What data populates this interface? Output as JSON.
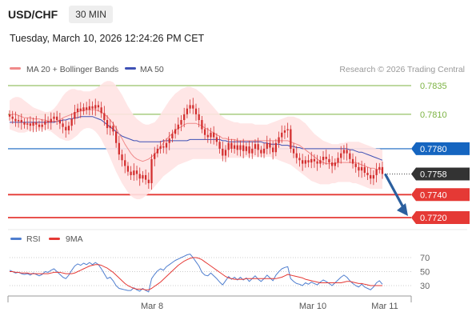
{
  "header": {
    "symbol": "USD/CHF",
    "timeframe": "30 MIN",
    "datetime": "Tuesday, March 10, 2026 12:24:26 PM CET"
  },
  "legend": {
    "ma20_label": "MA 20 + Bollinger Bands",
    "ma50_label": "MA 50",
    "copyright": "Research © 2026 Trading Central",
    "rsi_label": "RSI",
    "rsi_ma_label": "9MA"
  },
  "colors": {
    "candle": "#d32f2f",
    "bollinger_fill": "#ffe3e3",
    "ma20": "#f08a8a",
    "ma50": "#3f51b5",
    "resistance": "#7cb342",
    "pivot": "#1565c0",
    "support": "#e53935",
    "current": "#333333",
    "arrow": "#2b5f9e",
    "rsi": "#4f7ecf",
    "rsi_ma": "#e53935"
  },
  "chart_data": [
    {
      "type": "candlestick",
      "ylim": [
        0.7712,
        0.7848
      ],
      "x_ticks": [
        "Mar 8",
        "Mar 10",
        "Mar 11"
      ],
      "levels": [
        {
          "name": "resistance-2",
          "value": 0.7835,
          "label": "0.7835"
        },
        {
          "name": "resistance-1",
          "value": 0.781,
          "label": "0.7810"
        },
        {
          "name": "pivot",
          "value": 0.778,
          "label": "0.7780"
        },
        {
          "name": "current",
          "value": 0.7758,
          "label": "0.7758"
        },
        {
          "name": "support-1",
          "value": 0.774,
          "label": "0.7740"
        },
        {
          "name": "support-2",
          "value": 0.772,
          "label": "0.7720"
        }
      ],
      "close": [
        0.7808,
        0.7806,
        0.7804,
        0.7805,
        0.7803,
        0.7801,
        0.7802,
        0.78,
        0.7803,
        0.7801,
        0.7799,
        0.7801,
        0.7804,
        0.7803,
        0.7806,
        0.7808,
        0.7805,
        0.7802,
        0.7799,
        0.7796,
        0.78,
        0.7806,
        0.7812,
        0.7815,
        0.7813,
        0.7816,
        0.7814,
        0.7817,
        0.7815,
        0.7818,
        0.7816,
        0.7811,
        0.7805,
        0.7798,
        0.78,
        0.7795,
        0.7785,
        0.7775,
        0.777,
        0.7765,
        0.776,
        0.7757,
        0.7761,
        0.7758,
        0.7754,
        0.7757,
        0.7753,
        0.775,
        0.7771,
        0.7776,
        0.778,
        0.7782,
        0.7781,
        0.7785,
        0.7789,
        0.7793,
        0.7797,
        0.7801,
        0.7805,
        0.781,
        0.7815,
        0.7818,
        0.7815,
        0.781,
        0.7805,
        0.7797,
        0.7792,
        0.779,
        0.7794,
        0.779,
        0.7786,
        0.778,
        0.7774,
        0.7779,
        0.7785,
        0.778,
        0.7783,
        0.7779,
        0.7783,
        0.7778,
        0.7782,
        0.7776,
        0.778,
        0.7784,
        0.7779,
        0.7776,
        0.778,
        0.7785,
        0.7781,
        0.7777,
        0.7785,
        0.779,
        0.7794,
        0.7796,
        0.7797,
        0.778,
        0.7776,
        0.7772,
        0.777,
        0.7767,
        0.777,
        0.7768,
        0.7771,
        0.7769,
        0.7767,
        0.777,
        0.7773,
        0.7771,
        0.7768,
        0.7765,
        0.7768,
        0.7772,
        0.7776,
        0.7779,
        0.7776,
        0.7771,
        0.7767,
        0.7764,
        0.7761,
        0.7764,
        0.7759,
        0.7757,
        0.7754,
        0.7757,
        0.7762,
        0.7764,
        0.7758
      ],
      "bollinger_upper": [
        0.7822,
        0.7824,
        0.7825,
        0.7825,
        0.7824,
        0.7822,
        0.782,
        0.7818,
        0.7816,
        0.7815,
        0.7814,
        0.7813,
        0.7812,
        0.7812,
        0.7813,
        0.7815,
        0.7818,
        0.7822,
        0.7826,
        0.7829,
        0.7831,
        0.7832,
        0.7832,
        0.7831,
        0.7831,
        0.783,
        0.783,
        0.783,
        0.7831,
        0.7832,
        0.7834,
        0.7836,
        0.7838,
        0.7839,
        0.7839,
        0.7838,
        0.7835,
        0.7831,
        0.7827,
        0.7822,
        0.7817,
        0.7813,
        0.7809,
        0.7806,
        0.7804,
        0.7802,
        0.7801,
        0.7801,
        0.7802,
        0.7803,
        0.7806,
        0.781,
        0.7814,
        0.7818,
        0.7822,
        0.7825,
        0.7828,
        0.783,
        0.7832,
        0.7833,
        0.7834,
        0.7834,
        0.7833,
        0.7832,
        0.783,
        0.7828,
        0.7825,
        0.7822,
        0.7819,
        0.7816,
        0.7813,
        0.781,
        0.7808,
        0.7806,
        0.7805,
        0.7804,
        0.7803,
        0.7803,
        0.7802,
        0.7802,
        0.7802,
        0.7802,
        0.7802,
        0.7801,
        0.7801,
        0.7801,
        0.7801,
        0.7801,
        0.7802,
        0.7803,
        0.7804,
        0.7805,
        0.7806,
        0.7807,
        0.7808,
        0.7808,
        0.7808,
        0.7807,
        0.7806,
        0.7804,
        0.7802,
        0.7799,
        0.7796,
        0.7793,
        0.7791,
        0.7789,
        0.7787,
        0.7786,
        0.7785,
        0.7784,
        0.7784,
        0.7784,
        0.7785,
        0.7785,
        0.7786,
        0.7786,
        0.7786,
        0.7786,
        0.7786,
        0.7785,
        0.7784,
        0.7783,
        0.7782,
        0.7781,
        0.778,
        0.778,
        0.7779
      ],
      "bollinger_lower": [
        0.7797,
        0.7796,
        0.7795,
        0.7794,
        0.7794,
        0.7794,
        0.7795,
        0.7796,
        0.7796,
        0.7797,
        0.7797,
        0.7797,
        0.7797,
        0.7796,
        0.7795,
        0.7793,
        0.7791,
        0.7789,
        0.7788,
        0.7787,
        0.7787,
        0.7788,
        0.779,
        0.7792,
        0.7795,
        0.7797,
        0.7798,
        0.7798,
        0.7797,
        0.7795,
        0.7792,
        0.7788,
        0.7783,
        0.7778,
        0.7772,
        0.7766,
        0.776,
        0.7755,
        0.775,
        0.7746,
        0.7742,
        0.7739,
        0.7737,
        0.7736,
        0.7736,
        0.7737,
        0.7739,
        0.7741,
        0.7744,
        0.7747,
        0.775,
        0.7753,
        0.7756,
        0.7758,
        0.776,
        0.7762,
        0.7764,
        0.7766,
        0.7767,
        0.7768,
        0.7769,
        0.777,
        0.7771,
        0.7771,
        0.7771,
        0.7771,
        0.7771,
        0.7771,
        0.7771,
        0.7771,
        0.7771,
        0.7771,
        0.7771,
        0.7771,
        0.7772,
        0.7772,
        0.7772,
        0.7772,
        0.7772,
        0.7772,
        0.7773,
        0.7773,
        0.7773,
        0.7773,
        0.7773,
        0.7773,
        0.7773,
        0.7773,
        0.7773,
        0.7772,
        0.7771,
        0.777,
        0.7769,
        0.7768,
        0.7767,
        0.7766,
        0.7764,
        0.7762,
        0.776,
        0.7758,
        0.7756,
        0.7754,
        0.7752,
        0.7751,
        0.775,
        0.7749,
        0.7749,
        0.7749,
        0.7749,
        0.775,
        0.775,
        0.7751,
        0.7751,
        0.7751,
        0.7751,
        0.7751,
        0.775,
        0.775,
        0.7749,
        0.7748,
        0.7747,
        0.7746,
        0.7745,
        0.7745,
        0.7745,
        0.7745,
        0.7745
      ],
      "ma20": [
        0.7809,
        0.781,
        0.781,
        0.7809,
        0.7808,
        0.7807,
        0.7807,
        0.7807,
        0.7806,
        0.7806,
        0.7806,
        0.7805,
        0.7805,
        0.7804,
        0.7804,
        0.7804,
        0.7804,
        0.7805,
        0.7807,
        0.7808,
        0.7809,
        0.781,
        0.7811,
        0.7812,
        0.7813,
        0.7813,
        0.7814,
        0.7814,
        0.7814,
        0.7814,
        0.7813,
        0.7812,
        0.781,
        0.7808,
        0.7805,
        0.7802,
        0.7798,
        0.7793,
        0.7789,
        0.7784,
        0.778,
        0.7776,
        0.7773,
        0.7771,
        0.777,
        0.7769,
        0.777,
        0.7771,
        0.7773,
        0.7775,
        0.7778,
        0.7781,
        0.7785,
        0.7788,
        0.7791,
        0.7793,
        0.7796,
        0.7798,
        0.7799,
        0.7801,
        0.7802,
        0.7802,
        0.7802,
        0.7802,
        0.7801,
        0.78,
        0.7798,
        0.7797,
        0.7795,
        0.7794,
        0.7792,
        0.7791,
        0.7789,
        0.7789,
        0.7788,
        0.7788,
        0.7788,
        0.7787,
        0.7787,
        0.7787,
        0.7787,
        0.7787,
        0.7787,
        0.7787,
        0.7787,
        0.7787,
        0.7787,
        0.7787,
        0.7787,
        0.7787,
        0.7787,
        0.7787,
        0.7787,
        0.7787,
        0.7787,
        0.7786,
        0.7785,
        0.7784,
        0.7783,
        0.7781,
        0.7779,
        0.7777,
        0.7775,
        0.7773,
        0.7771,
        0.7769,
        0.7768,
        0.7767,
        0.7767,
        0.7767,
        0.7767,
        0.7768,
        0.7768,
        0.7768,
        0.7768,
        0.7768,
        0.7768,
        0.7768,
        0.7767,
        0.7766,
        0.7765,
        0.7764,
        0.7763,
        0.7763,
        0.7762,
        0.7762,
        0.7762
      ],
      "ma50": [
        0.7803,
        0.7803,
        0.7803,
        0.7803,
        0.7803,
        0.7803,
        0.7803,
        0.7803,
        0.7803,
        0.7803,
        0.7803,
        0.7803,
        0.7803,
        0.7803,
        0.7803,
        0.7803,
        0.7804,
        0.7804,
        0.7805,
        0.7805,
        0.7806,
        0.7806,
        0.7807,
        0.7807,
        0.7808,
        0.7808,
        0.7808,
        0.7808,
        0.7808,
        0.7807,
        0.7806,
        0.7805,
        0.7803,
        0.7801,
        0.7799,
        0.7797,
        0.7795,
        0.7793,
        0.7791,
        0.779,
        0.7789,
        0.7788,
        0.7787,
        0.7787,
        0.7786,
        0.7786,
        0.7786,
        0.7786,
        0.7786,
        0.7786,
        0.7786,
        0.7786,
        0.7787,
        0.7787,
        0.7787,
        0.7787,
        0.7787,
        0.7787,
        0.7787,
        0.7787,
        0.7787,
        0.7788,
        0.7788,
        0.7788,
        0.7788,
        0.7788,
        0.7788,
        0.7788,
        0.7788,
        0.7788,
        0.7788,
        0.7788,
        0.7787,
        0.7787,
        0.7786,
        0.7786,
        0.7786,
        0.7786,
        0.7786,
        0.7786,
        0.7786,
        0.7786,
        0.7786,
        0.7786,
        0.7786,
        0.7786,
        0.7785,
        0.7785,
        0.7784,
        0.7784,
        0.7784,
        0.7784,
        0.7783,
        0.7783,
        0.7783,
        0.7782,
        0.7782,
        0.7781,
        0.7781,
        0.778,
        0.778,
        0.778,
        0.778,
        0.778,
        0.778,
        0.778,
        0.778,
        0.778,
        0.778,
        0.778,
        0.778,
        0.778,
        0.778,
        0.778,
        0.778,
        0.7779,
        0.7779,
        0.7778,
        0.7777,
        0.7777,
        0.7776,
        0.7775,
        0.7774,
        0.7773,
        0.7772,
        0.7771,
        0.777
      ]
    },
    {
      "type": "line",
      "ylim": [
        20,
        80
      ],
      "y_ticks": [
        70,
        50,
        30
      ],
      "rsi": [
        52,
        50,
        48,
        49,
        47,
        46,
        47,
        45,
        48,
        46,
        44,
        46,
        50,
        49,
        52,
        54,
        50,
        46,
        42,
        40,
        45,
        52,
        58,
        61,
        59,
        62,
        60,
        63,
        60,
        63,
        60,
        54,
        47,
        40,
        42,
        37,
        30,
        26,
        25,
        24,
        23,
        23,
        27,
        24,
        22,
        26,
        23,
        21,
        40,
        46,
        51,
        54,
        52,
        57,
        60,
        63,
        66,
        68,
        70,
        72,
        74,
        75,
        70,
        64,
        58,
        49,
        45,
        44,
        48,
        44,
        40,
        35,
        31,
        37,
        43,
        39,
        42,
        38,
        42,
        38,
        41,
        36,
        40,
        44,
        39,
        36,
        40,
        45,
        41,
        37,
        45,
        50,
        54,
        56,
        57,
        40,
        36,
        33,
        32,
        30,
        34,
        32,
        35,
        33,
        31,
        35,
        38,
        36,
        33,
        30,
        34,
        38,
        42,
        45,
        42,
        37,
        33,
        30,
        28,
        32,
        28,
        26,
        24,
        28,
        34,
        37,
        32
      ],
      "rsi_ma": [
        50,
        50,
        49,
        49,
        48,
        48,
        48,
        47,
        47,
        47,
        47,
        47,
        47,
        47,
        48,
        49,
        49,
        49,
        48,
        47,
        47,
        47,
        48,
        50,
        52,
        54,
        56,
        58,
        59,
        60,
        60,
        59,
        57,
        55,
        52,
        49,
        45,
        41,
        37,
        33,
        30,
        28,
        26,
        25,
        25,
        25,
        24,
        24,
        26,
        29,
        32,
        35,
        39,
        43,
        47,
        51,
        55,
        59,
        62,
        65,
        67,
        69,
        70,
        70,
        69,
        67,
        64,
        61,
        58,
        55,
        52,
        49,
        46,
        43,
        41,
        40,
        39,
        39,
        39,
        39,
        40,
        40,
        40,
        40,
        40,
        40,
        40,
        40,
        40,
        40,
        40,
        41,
        42,
        44,
        46,
        45,
        44,
        43,
        42,
        41,
        39,
        38,
        37,
        36,
        35,
        34,
        34,
        34,
        34,
        34,
        34,
        34,
        34,
        35,
        36,
        36,
        35,
        34,
        33,
        33,
        32,
        31,
        30,
        30,
        30,
        30,
        30
      ]
    }
  ]
}
